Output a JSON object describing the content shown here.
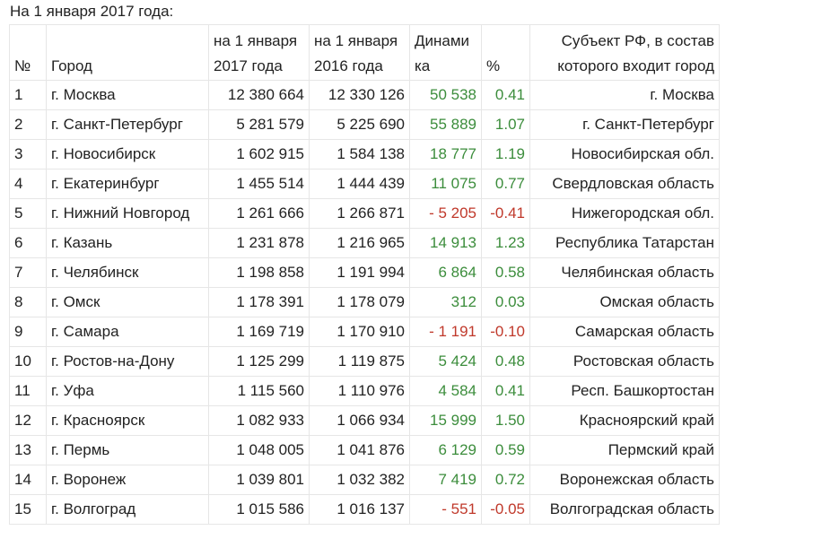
{
  "caption": "На 1 января 2017 года:",
  "headers": {
    "num": "№",
    "city": "Город",
    "pop2017": [
      "на 1 января",
      "2017 года"
    ],
    "pop2016": [
      "на 1 января",
      "2016 года"
    ],
    "dynamics": [
      "Динами",
      "ка"
    ],
    "percent": "%",
    "subject": [
      "Субъект РФ, в состав",
      "которого входит город"
    ]
  },
  "rows": [
    {
      "num": "1",
      "city": "г. Москва",
      "pop2017": "12 380 664",
      "pop2016": "12 330 126",
      "dynamics": "50 538",
      "percent": "0.41",
      "subject": "г. Москва",
      "trend": "pos"
    },
    {
      "num": "2",
      "city": "г. Санкт-Петербург",
      "pop2017": "5 281 579",
      "pop2016": "5 225 690",
      "dynamics": "55 889",
      "percent": "1.07",
      "subject": "г. Санкт-Петербург",
      "trend": "pos"
    },
    {
      "num": "3",
      "city": "г. Новосибирск",
      "pop2017": "1 602 915",
      "pop2016": "1 584 138",
      "dynamics": "18 777",
      "percent": "1.19",
      "subject": "Новосибирская обл.",
      "trend": "pos"
    },
    {
      "num": "4",
      "city": "г. Екатеринбург",
      "pop2017": "1 455 514",
      "pop2016": "1 444 439",
      "dynamics": "11 075",
      "percent": "0.77",
      "subject": "Свердловская область",
      "trend": "pos"
    },
    {
      "num": "5",
      "city": "г. Нижний Новгород",
      "pop2017": "1 261 666",
      "pop2016": "1 266 871",
      "dynamics": "- 5 205",
      "percent": "-0.41",
      "subject": "Нижегородская обл.",
      "trend": "neg"
    },
    {
      "num": "6",
      "city": "г. Казань",
      "pop2017": "1 231 878",
      "pop2016": "1 216 965",
      "dynamics": "14 913",
      "percent": "1.23",
      "subject": "Республика Татарстан",
      "trend": "pos"
    },
    {
      "num": "7",
      "city": "г. Челябинск",
      "pop2017": "1 198 858",
      "pop2016": "1 191 994",
      "dynamics": "6 864",
      "percent": "0.58",
      "subject": "Челябинская область",
      "trend": "pos"
    },
    {
      "num": "8",
      "city": "г. Омск",
      "pop2017": "1 178 391",
      "pop2016": "1 178 079",
      "dynamics": "312",
      "percent": "0.03",
      "subject": "Омская область",
      "trend": "pos"
    },
    {
      "num": "9",
      "city": "г. Самара",
      "pop2017": "1 169 719",
      "pop2016": "1 170 910",
      "dynamics": "- 1 191",
      "percent": "-0.10",
      "subject": "Самарская область",
      "trend": "neg"
    },
    {
      "num": "10",
      "city": "г. Ростов-на-Дону",
      "pop2017": "1 125 299",
      "pop2016": "1 119 875",
      "dynamics": "5 424",
      "percent": "0.48",
      "subject": "Ростовская область",
      "trend": "pos"
    },
    {
      "num": "11",
      "city": "г. Уфа",
      "pop2017": "1 115 560",
      "pop2016": "1 110 976",
      "dynamics": "4 584",
      "percent": "0.41",
      "subject": "Респ. Башкортостан",
      "trend": "pos"
    },
    {
      "num": "12",
      "city": "г. Красноярск",
      "pop2017": "1 082 933",
      "pop2016": "1 066 934",
      "dynamics": "15 999",
      "percent": "1.50",
      "subject": "Красноярский край",
      "trend": "pos"
    },
    {
      "num": "13",
      "city": "г. Пермь",
      "pop2017": "1 048 005",
      "pop2016": "1 041 876",
      "dynamics": "6 129",
      "percent": "0.59",
      "subject": "Пермский край",
      "trend": "pos"
    },
    {
      "num": "14",
      "city": "г. Воронеж",
      "pop2017": "1 039 801",
      "pop2016": "1 032 382",
      "dynamics": "7 419",
      "percent": "0.72",
      "subject": "Воронежская область",
      "trend": "pos"
    },
    {
      "num": "15",
      "city": "г. Волгоград",
      "pop2017": "1 015 586",
      "pop2016": "1 016 137",
      "dynamics": "- 551",
      "percent": "-0.05",
      "subject": "Волгоградская область",
      "trend": "neg"
    }
  ],
  "colors": {
    "positive": "#3c8d3c",
    "negative": "#c0392b",
    "border": "#e6e6e6"
  }
}
